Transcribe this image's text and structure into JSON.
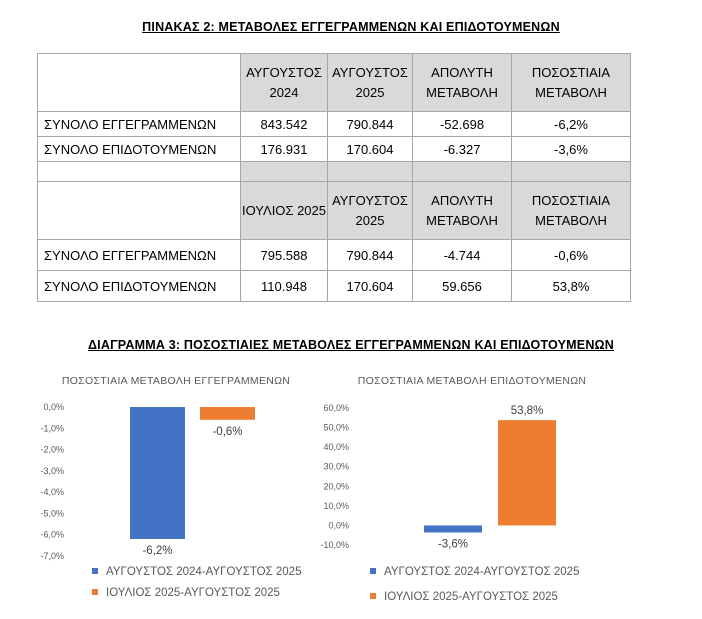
{
  "table_title": "ΠΙΝΑΚΑΣ 2: ΜΕΤΑΒΟΛΕΣ ΕΓΓΕΓΡΑΜΜΕΝΩΝ ΚΑΙ ΕΠΙΔΟΤΟΥΜΕΝΩΝ",
  "table1": {
    "headers": [
      "ΑΥΓΟΥΣΤΟΣ 2024",
      "ΑΥΓΟΥΣΤΟΣ 2025",
      "ΑΠΟΛΥΤΗ ΜΕΤΑΒΟΛΗ",
      "ΠΟΣΟΣΤΙΑΙΑ ΜΕΤΑΒΟΛΗ"
    ],
    "rows": [
      {
        "label": "ΣΥΝΟΛΟ ΕΓΓΕΓΡΑΜΜΕΝΩΝ",
        "cells": [
          "843.542",
          "790.844",
          "-52.698",
          "-6,2%"
        ]
      },
      {
        "label": "ΣΥΝΟΛΟ ΕΠΙΔΟΤΟΥΜΕΝΩΝ",
        "cells": [
          "176.931",
          "170.604",
          "-6.327",
          "-3,6%"
        ]
      }
    ]
  },
  "table2": {
    "headers": [
      "ΙΟΥΛΙΟΣ 2025",
      "ΑΥΓΟΥΣΤΟΣ 2025",
      "ΑΠΟΛΥΤΗ ΜΕΤΑΒΟΛΗ",
      "ΠΟΣΟΣΤΙΑΙΑ ΜΕΤΑΒΟΛΗ"
    ],
    "rows": [
      {
        "label": "ΣΥΝΟΛΟ ΕΓΓΕΓΡΑΜΜΕΝΩΝ",
        "cells": [
          "795.588",
          "790.844",
          "-4.744",
          "-0,6%"
        ]
      },
      {
        "label": "ΣΥΝΟΛΟ ΕΠΙΔΟΤΟΥΜΕΝΩΝ",
        "cells": [
          "110.948",
          "170.604",
          "59.656",
          "53,8%"
        ]
      }
    ]
  },
  "diagram_title": "ΔΙΑΓΡΑΜΜΑ 3: ΠΟΣΟΣΤΙΑΙΕΣ ΜΕΤΑΒΟΛΕΣ ΕΓΓΕΓΡΑΜΜΕΝΩΝ ΚΑΙ ΕΠΙΔΟΤΟΥΜΕΝΩΝ",
  "colors": {
    "blue": "#4472c4",
    "orange": "#ed7d31"
  },
  "chart_data": [
    {
      "type": "bar",
      "title": "ΠΟΣΟΣΤΙΑΙΑ ΜΕΤΑΒΟΛΗ ΕΓΓΕΓΡΑΜΜΕΝΩΝ",
      "xlabel": "",
      "ylabel": "",
      "ylim": [
        -7.0,
        0.0
      ],
      "yticks": [
        0,
        -1,
        -2,
        -3,
        -4,
        -5,
        -6,
        -7
      ],
      "ytick_labels": [
        "0,0%",
        "-1,0%",
        "-2,0%",
        "-3,0%",
        "-4,0%",
        "-5,0%",
        "-6,0%",
        "-7,0%"
      ],
      "grid": false,
      "legend_position": "bottom",
      "series": [
        {
          "name": "ΑΥΓΟΥΣΤΟΣ 2024-ΑΥΓΟΥΣΤΟΣ 2025",
          "value": -6.2,
          "label": "-6,2%",
          "color": "#4472c4"
        },
        {
          "name": "ΙΟΥΛΙΟΣ 2025-ΑΥΓΟΥΣΤΟΣ 2025",
          "value": -0.6,
          "label": "-0,6%",
          "color": "#ed7d31"
        }
      ]
    },
    {
      "type": "bar",
      "title": "ΠΟΣΟΣΤΙΑΙΑ ΜΕΤΑΒΟΛΗ ΕΠΙΔΟΤΟΥΜΕΝΩΝ",
      "xlabel": "",
      "ylabel": "",
      "ylim": [
        -10.0,
        60.0
      ],
      "yticks": [
        60,
        50,
        40,
        30,
        20,
        10,
        0,
        -10
      ],
      "ytick_labels": [
        "60,0%",
        "50,0%",
        "40,0%",
        "30,0%",
        "20,0%",
        "10,0%",
        "0,0%",
        "-10,0%"
      ],
      "grid": false,
      "legend_position": "bottom",
      "series": [
        {
          "name": "ΑΥΓΟΥΣΤΟΣ 2024-ΑΥΓΟΥΣΤΟΣ 2025",
          "value": -3.6,
          "label": "-3,6%",
          "color": "#4472c4"
        },
        {
          "name": "ΙΟΥΛΙΟΣ 2025-ΑΥΓΟΥΣΤΟΣ 2025",
          "value": 53.8,
          "label": "53,8%",
          "color": "#ed7d31"
        }
      ]
    }
  ]
}
